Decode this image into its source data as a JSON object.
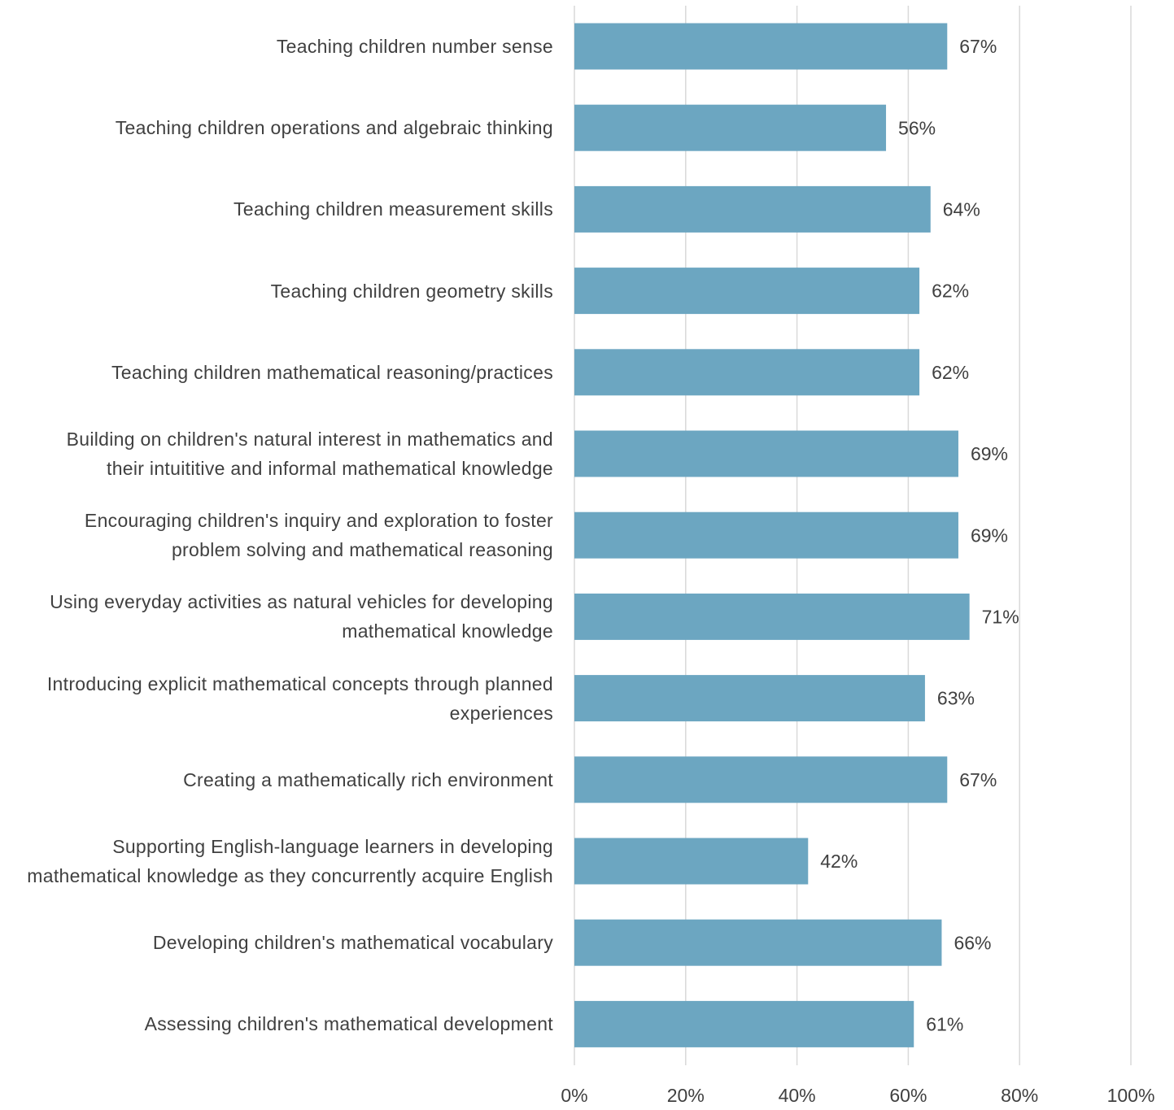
{
  "chart_data": {
    "type": "bar",
    "orientation": "horizontal",
    "categories": [
      "Teaching children number sense",
      "Teaching children operations and algebraic thinking",
      "Teaching children measurement skills",
      "Teaching children geometry skills",
      "Teaching children mathematical reasoning/practices",
      "Building on children's natural interest in mathematics and\ntheir intuititive and informal mathematical knowledge",
      "Encouraging children's inquiry and exploration to foster\nproblem solving and mathematical reasoning",
      "Using everyday activities as natural vehicles for developing\nmathematical knowledge",
      "Introducing explicit mathematical concepts through planned\nexperiences",
      "Creating a mathematically rich environment",
      "Supporting English-language learners in developing\nmathematical knowledge as they concurrently acquire English",
      "Developing children's mathematical vocabulary",
      "Assessing children's mathematical development"
    ],
    "values": [
      67,
      56,
      64,
      62,
      62,
      69,
      69,
      71,
      63,
      67,
      42,
      66,
      61
    ],
    "value_labels": [
      "67%",
      "56%",
      "64%",
      "62%",
      "62%",
      "69%",
      "69%",
      "71%",
      "63%",
      "67%",
      "42%",
      "66%",
      "61%"
    ],
    "color": "#6ca6c1",
    "xlim": [
      0,
      100
    ],
    "xticks": [
      {
        "value": 0,
        "label": "0%"
      },
      {
        "value": 20,
        "label": "20%"
      },
      {
        "value": 40,
        "label": "40%"
      },
      {
        "value": 60,
        "label": "60%"
      },
      {
        "value": 80,
        "label": "80%"
      },
      {
        "value": 100,
        "label": "100%"
      }
    ],
    "grid": true
  }
}
